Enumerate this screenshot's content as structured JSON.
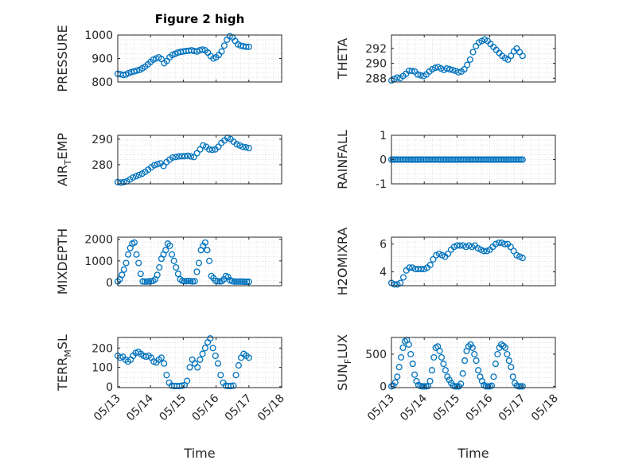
{
  "figure": {
    "title": "Figure 2 high",
    "marker_color": "#0072BD",
    "marker_shape": "open-circle",
    "grid": "dotted"
  },
  "chart_data": [
    {
      "type": "scatter",
      "ylabel": "PRESSURE",
      "xlabel": "",
      "title": "Figure 2 high",
      "xlim": [
        "05/13",
        "05/18"
      ],
      "ylim": [
        800,
        1000
      ],
      "yticks": [
        "800",
        "900",
        "1000"
      ],
      "xticks": [
        "05/13",
        "05/14",
        "05/15",
        "05/16",
        "05/17",
        "05/18"
      ],
      "x_range": [
        "05/13",
        "05/17"
      ],
      "y": [
        835,
        833,
        830,
        832,
        838,
        842,
        845,
        848,
        852,
        858,
        865,
        875,
        885,
        895,
        900,
        905,
        898,
        880,
        890,
        905,
        915,
        920,
        925,
        928,
        930,
        932,
        933,
        935,
        932,
        930,
        935,
        938,
        935,
        925,
        910,
        900,
        905,
        915,
        930,
        955,
        980,
        995,
        990,
        975,
        960,
        955,
        952,
        950,
        950
      ]
    },
    {
      "type": "scatter",
      "ylabel": "THETA",
      "xlabel": "",
      "xlim": [
        "05/13",
        "05/18"
      ],
      "ylim": [
        287.5,
        293.8
      ],
      "yticks": [
        "288",
        "290",
        "292"
      ],
      "xticks": [
        "05/13",
        "05/14",
        "05/15",
        "05/16",
        "05/17",
        "05/18"
      ],
      "x_range": [
        "05/13",
        "05/17"
      ],
      "y": [
        287.7,
        287.9,
        288.1,
        288.0,
        288.3,
        288.6,
        289.0,
        289.0,
        288.9,
        288.5,
        288.4,
        288.3,
        288.5,
        288.9,
        289.2,
        289.4,
        289.5,
        289.3,
        289.1,
        289.3,
        289.2,
        289.1,
        289.0,
        288.8,
        288.9,
        289.2,
        289.8,
        290.5,
        291.5,
        292.3,
        292.8,
        293.0,
        293.2,
        293.0,
        292.6,
        292.2,
        291.8,
        291.4,
        291.0,
        290.7,
        290.5,
        291.0,
        291.6,
        292.0,
        291.5,
        291.0
      ]
    },
    {
      "type": "scatter",
      "ylabel": "AIR_TEMP",
      "ylabel_main": "AIR",
      "ylabel_sub": "T",
      "ylabel_rest": "EMP",
      "xlabel": "",
      "xlim": [
        "05/13",
        "05/18"
      ],
      "ylim": [
        272.5,
        291.5
      ],
      "yticks": [
        "280",
        "290"
      ],
      "xticks": [
        "05/13",
        "05/14",
        "05/15",
        "05/16",
        "05/17",
        "05/18"
      ],
      "x_range": [
        "05/13",
        "05/17"
      ],
      "y": [
        273.2,
        273.0,
        273.2,
        273.5,
        274.2,
        275.0,
        275.5,
        276.0,
        276.5,
        277.2,
        278.0,
        279.0,
        279.8,
        280.2,
        280.5,
        279.5,
        281.0,
        282.0,
        282.8,
        283.0,
        283.2,
        283.3,
        283.3,
        283.5,
        283.2,
        283.0,
        284.5,
        286.0,
        287.5,
        287.0,
        286.0,
        285.8,
        286.0,
        287.0,
        288.5,
        289.5,
        290.5,
        290.0,
        289.0,
        288.0,
        287.5,
        287.0,
        286.8,
        286.5
      ]
    },
    {
      "type": "scatter",
      "ylabel": "RAINFALL",
      "xlabel": "",
      "xlim": [
        "05/13",
        "05/18"
      ],
      "ylim": [
        -1,
        1
      ],
      "yticks": [
        "-1",
        "0",
        "1"
      ],
      "xticks": [
        "05/13",
        "05/14",
        "05/15",
        "05/16",
        "05/17",
        "05/18"
      ],
      "x_range": [
        "05/13",
        "05/17"
      ],
      "y": [
        0,
        0,
        0,
        0,
        0,
        0,
        0,
        0,
        0,
        0,
        0,
        0,
        0,
        0,
        0,
        0,
        0,
        0,
        0,
        0,
        0,
        0,
        0,
        0,
        0,
        0,
        0,
        0,
        0,
        0,
        0,
        0,
        0,
        0,
        0,
        0,
        0,
        0,
        0,
        0,
        0,
        0,
        0,
        0,
        0,
        0,
        0,
        0,
        0,
        0,
        0,
        0,
        0,
        0,
        0,
        0,
        0,
        0,
        0,
        0,
        0,
        0,
        0,
        0,
        0,
        0,
        0,
        0,
        0,
        0,
        0,
        0,
        0,
        0,
        0,
        0,
        0,
        0,
        0,
        0
      ]
    },
    {
      "type": "scatter",
      "ylabel": "MIXDEPTH",
      "xlabel": "",
      "xlim": [
        "05/13",
        "05/18"
      ],
      "ylim": [
        -150,
        2100
      ],
      "yticks": [
        "0",
        "1000",
        "2000"
      ],
      "xticks": [
        "05/13",
        "05/14",
        "05/15",
        "05/16",
        "05/17",
        "05/18"
      ],
      "x_range": [
        "05/13",
        "05/17"
      ],
      "y": [
        50,
        150,
        350,
        600,
        900,
        1300,
        1600,
        1800,
        1850,
        1300,
        900,
        400,
        50,
        40,
        40,
        50,
        60,
        80,
        150,
        350,
        700,
        1100,
        1300,
        1500,
        1800,
        1700,
        1300,
        1000,
        700,
        400,
        150,
        80,
        60,
        60,
        70,
        60,
        50,
        60,
        500,
        900,
        1500,
        1700,
        1850,
        1500,
        1000,
        300,
        200,
        80,
        60,
        50,
        60,
        150,
        300,
        250,
        100,
        60,
        40,
        40,
        40,
        40,
        40,
        30,
        30,
        30
      ]
    },
    {
      "type": "scatter",
      "ylabel": "H2OMIXRA",
      "xlabel": "",
      "xlim": [
        "05/13",
        "05/18"
      ],
      "ylim": [
        3,
        6.5
      ],
      "yticks": [
        "4",
        "6"
      ],
      "xticks": [
        "05/13",
        "05/14",
        "05/15",
        "05/16",
        "05/17",
        "05/18"
      ],
      "x_range": [
        "05/13",
        "05/17"
      ],
      "y": [
        3.2,
        3.1,
        3.1,
        3.2,
        3.6,
        4.1,
        4.3,
        4.3,
        4.2,
        4.2,
        4.2,
        4.2,
        4.3,
        4.5,
        4.9,
        5.2,
        5.3,
        5.2,
        5.1,
        5.3,
        5.6,
        5.8,
        5.9,
        5.9,
        5.9,
        5.8,
        5.9,
        5.8,
        5.9,
        5.7,
        5.6,
        5.5,
        5.5,
        5.6,
        5.8,
        6.0,
        6.1,
        6.1,
        6.0,
        6.0,
        5.8,
        5.5,
        5.2,
        5.1,
        5.0
      ]
    },
    {
      "type": "scatter",
      "ylabel": "TERR_MSL",
      "ylabel_main": "TERR",
      "ylabel_sub": "M",
      "ylabel_rest": "SL",
      "xlabel": "Time",
      "xlim": [
        "05/13",
        "05/18"
      ],
      "ylim": [
        -5,
        255
      ],
      "yticks": [
        "0",
        "100",
        "200"
      ],
      "xticks": [
        "05/13",
        "05/14",
        "05/15",
        "05/16",
        "05/17",
        "05/18"
      ],
      "x_range": [
        "05/13",
        "05/17"
      ],
      "y": [
        160,
        150,
        155,
        140,
        130,
        140,
        160,
        175,
        180,
        170,
        160,
        155,
        160,
        150,
        130,
        125,
        140,
        150,
        120,
        60,
        20,
        5,
        3,
        3,
        3,
        5,
        8,
        30,
        100,
        140,
        120,
        100,
        140,
        170,
        200,
        230,
        250,
        200,
        160,
        120,
        60,
        20,
        5,
        3,
        3,
        5,
        60,
        110,
        150,
        170,
        160,
        150
      ]
    },
    {
      "type": "scatter",
      "ylabel": "SUN_FLUX",
      "ylabel_main": "SUN",
      "ylabel_sub": "F",
      "ylabel_rest": "LUX",
      "xlabel": "Time",
      "xlim": [
        "05/13",
        "05/18"
      ],
      "ylim": [
        -20,
        760
      ],
      "yticks": [
        "0",
        "500"
      ],
      "xticks": [
        "05/13",
        "05/14",
        "05/15",
        "05/16",
        "05/17",
        "05/18"
      ],
      "x_range": [
        "05/13",
        "05/17"
      ],
      "y": [
        0,
        10,
        60,
        150,
        300,
        450,
        600,
        700,
        720,
        650,
        500,
        350,
        180,
        80,
        20,
        5,
        0,
        0,
        0,
        5,
        80,
        250,
        450,
        600,
        620,
        550,
        450,
        350,
        250,
        150,
        100,
        50,
        10,
        0,
        0,
        0,
        40,
        200,
        400,
        550,
        620,
        650,
        600,
        500,
        400,
        250,
        150,
        80,
        20,
        0,
        0,
        0,
        10,
        150,
        350,
        500,
        600,
        650,
        630,
        600,
        500,
        400,
        300,
        150,
        50,
        10,
        0,
        0,
        0
      ]
    }
  ]
}
